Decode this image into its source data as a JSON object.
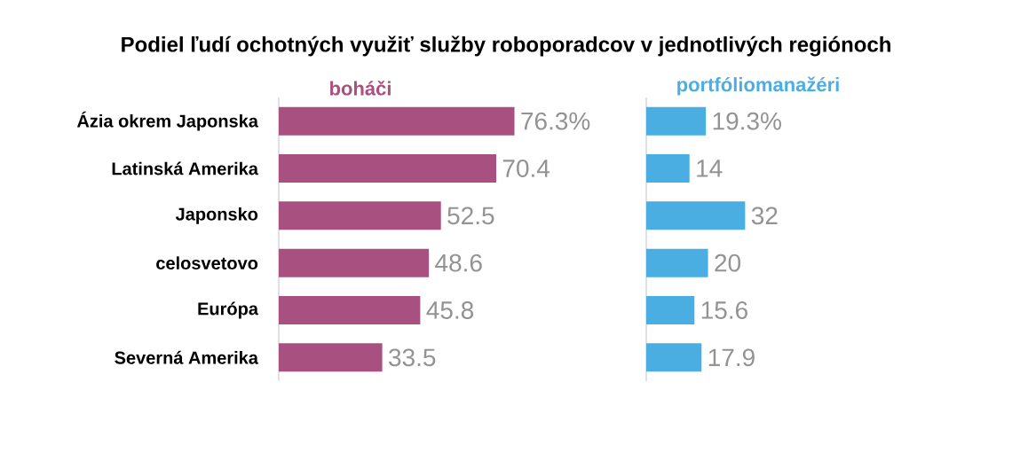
{
  "chart_data": [
    {
      "type": "bar",
      "orientation": "horizontal",
      "title": "Podiel ľudí ochotných využiť služby roboporadcov v jednotlivých regiónoch",
      "categories": [
        "Ázia okrem Japonska",
        "Latinská Amerika",
        "Japonsko",
        "celosvetovo",
        "Európa",
        "Severná Amerika"
      ],
      "series": [
        {
          "name": "boháči",
          "color": "#a8507f",
          "values": [
            76.3,
            70.4,
            52.5,
            48.6,
            45.8,
            33.5
          ],
          "value_labels": [
            "76.3%",
            "70.4",
            "52.5",
            "48.6",
            "45.8",
            "33.5"
          ]
        }
      ],
      "tick_labels": "y"
    },
    {
      "type": "bar",
      "orientation": "horizontal",
      "categories": [
        null,
        null,
        null,
        null,
        null,
        null
      ],
      "series": [
        {
          "name": "portfóliomanažéri",
          "color": "#4aaee3",
          "values": [
            19.3,
            14,
            32,
            20,
            15.6,
            17.9
          ],
          "value_labels": [
            "19.3%",
            "14",
            "32",
            "20",
            "15.6",
            "17.9"
          ]
        }
      ],
      "tick_labels": false
    }
  ]
}
